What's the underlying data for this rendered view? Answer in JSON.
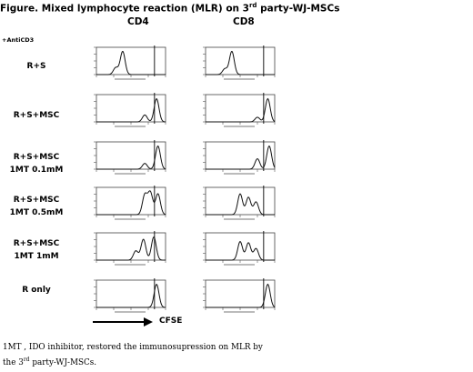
{
  "figure": {
    "title_main": "Figure. Mixed lymphocyte reaction (MLR) on 3",
    "title_sup": "rd",
    "title_tail": " party-WJ-MSCs",
    "col_cd4": "CD4",
    "col_cd8": "CD8",
    "anticd3": "+AntiCD3",
    "rows": [
      {
        "line1": "R+S",
        "line2": ""
      },
      {
        "line1": "R+S+MSC",
        "line2": ""
      },
      {
        "line1": "R+S+MSC",
        "line2": "1MT 0.1mM"
      },
      {
        "line1": "R+S+MSC",
        "line2": "1MT 0.5mM"
      },
      {
        "line1": "R+S+MSC",
        "line2": "1MT 1mM"
      },
      {
        "line1": "R only",
        "line2": ""
      }
    ],
    "xaxis_label": "CFSE",
    "caption_line1": "1MT , IDO inhibitor, restored the immunosupression on MLR by",
    "caption_pre": "the 3",
    "caption_sup": "rd",
    "caption_post": " party-WJ-MSCs."
  },
  "chart_data": [
    {
      "type": "line",
      "panel": "CD4 R+S",
      "peaks": [
        [
          0.38,
          1.0
        ],
        [
          0.28,
          0.3
        ]
      ]
    },
    {
      "type": "line",
      "panel": "CD8 R+S",
      "peaks": [
        [
          0.38,
          1.0
        ],
        [
          0.28,
          0.25
        ]
      ]
    },
    {
      "type": "line",
      "panel": "CD4 R+S+MSC",
      "peaks": [
        [
          0.87,
          1.0
        ],
        [
          0.7,
          0.3
        ]
      ]
    },
    {
      "type": "line",
      "panel": "CD8 R+S+MSC",
      "peaks": [
        [
          0.9,
          1.0
        ],
        [
          0.75,
          0.2
        ]
      ]
    },
    {
      "type": "line",
      "panel": "CD4 R+S+MSC 1MT 0.1mM",
      "peaks": [
        [
          0.89,
          1.0
        ],
        [
          0.7,
          0.25
        ]
      ]
    },
    {
      "type": "line",
      "panel": "CD8 R+S+MSC 1MT 0.1mM",
      "peaks": [
        [
          0.75,
          0.45
        ],
        [
          0.92,
          1.0
        ]
      ]
    },
    {
      "type": "line",
      "panel": "CD4 R+S+MSC 1MT 0.5mM",
      "peaks": [
        [
          0.7,
          0.85
        ],
        [
          0.78,
          0.95
        ],
        [
          0.89,
          0.9
        ]
      ]
    },
    {
      "type": "line",
      "panel": "CD8 R+S+MSC 1MT 0.5mM",
      "peaks": [
        [
          0.5,
          0.9
        ],
        [
          0.62,
          0.75
        ],
        [
          0.73,
          0.55
        ]
      ]
    },
    {
      "type": "line",
      "panel": "CD4 R+S+MSC 1MT 1mM",
      "peaks": [
        [
          0.68,
          0.9
        ],
        [
          0.83,
          1.0
        ],
        [
          0.57,
          0.4
        ]
      ]
    },
    {
      "type": "line",
      "panel": "CD8 R+S+MSC 1MT 1mM",
      "peaks": [
        [
          0.5,
          0.8
        ],
        [
          0.62,
          0.75
        ],
        [
          0.73,
          0.5
        ]
      ]
    },
    {
      "type": "line",
      "panel": "CD4 R only",
      "peaks": [
        [
          0.87,
          1.0
        ]
      ]
    },
    {
      "type": "line",
      "panel": "CD8 R only",
      "peaks": [
        [
          0.9,
          1.0
        ]
      ]
    }
  ]
}
